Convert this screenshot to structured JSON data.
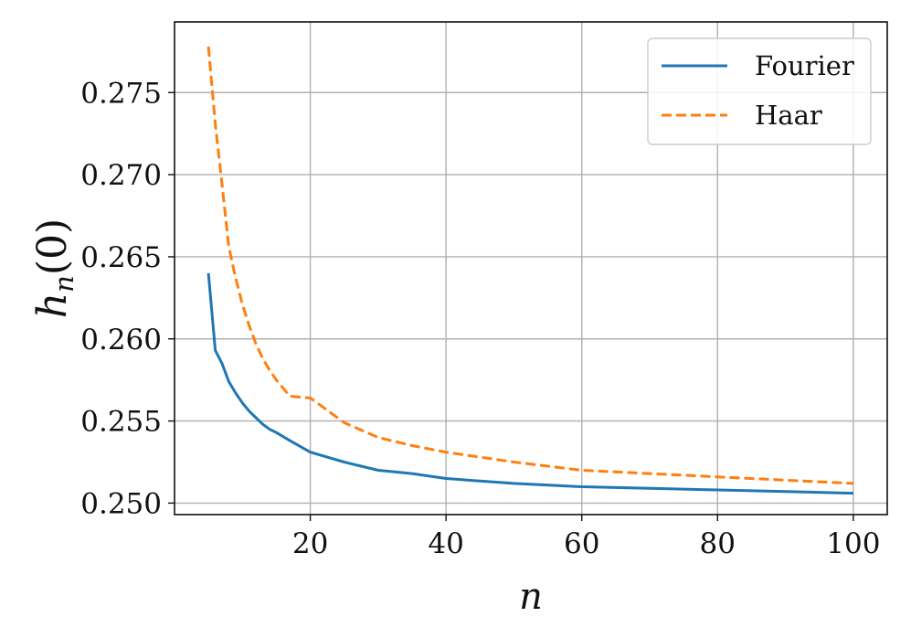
{
  "chart_data": {
    "type": "line",
    "xlabel": "n",
    "ylabel": "h_n(0)",
    "ylabel_main": "h",
    "ylabel_sub": "n",
    "ylabel_rest": "(0)",
    "xlim": [
      0,
      105
    ],
    "ylim": [
      0.2493,
      0.2793
    ],
    "xticks": [
      20,
      40,
      60,
      80,
      100
    ],
    "xtick_labels": [
      "20",
      "40",
      "60",
      "80",
      "100"
    ],
    "yticks": [
      0.25,
      0.255,
      0.26,
      0.265,
      0.27,
      0.275
    ],
    "ytick_labels": [
      "0.250",
      "0.255",
      "0.260",
      "0.265",
      "0.270",
      "0.275"
    ],
    "grid": true,
    "legend_position": "top-right",
    "series": [
      {
        "name": "Fourier",
        "color": "#1f77b4",
        "dash": "solid",
        "x": [
          5,
          6,
          7,
          8,
          9,
          10,
          11,
          12,
          13,
          14,
          15,
          17,
          20,
          25,
          30,
          35,
          40,
          50,
          60,
          70,
          80,
          90,
          100
        ],
        "y": [
          0.264,
          0.2593,
          0.2585,
          0.2574,
          0.2567,
          0.2561,
          0.2556,
          0.2552,
          0.2548,
          0.2545,
          0.2543,
          0.2538,
          0.2531,
          0.2525,
          0.252,
          0.2518,
          0.2515,
          0.2512,
          0.251,
          0.2509,
          0.2508,
          0.2507,
          0.2506
        ]
      },
      {
        "name": "Haar",
        "color": "#ff7f0e",
        "dash": "dashed",
        "x": [
          5,
          6,
          7,
          8,
          9,
          10,
          11,
          12,
          13,
          14,
          15,
          17,
          20,
          25,
          30,
          35,
          40,
          50,
          60,
          70,
          80,
          90,
          100
        ],
        "y": [
          0.2778,
          0.2731,
          0.2694,
          0.2656,
          0.2637,
          0.2621,
          0.2608,
          0.2597,
          0.2588,
          0.2581,
          0.2575,
          0.2565,
          0.2564,
          0.2549,
          0.254,
          0.2535,
          0.2531,
          0.2525,
          0.252,
          0.2518,
          0.2516,
          0.2514,
          0.2512
        ]
      }
    ]
  }
}
